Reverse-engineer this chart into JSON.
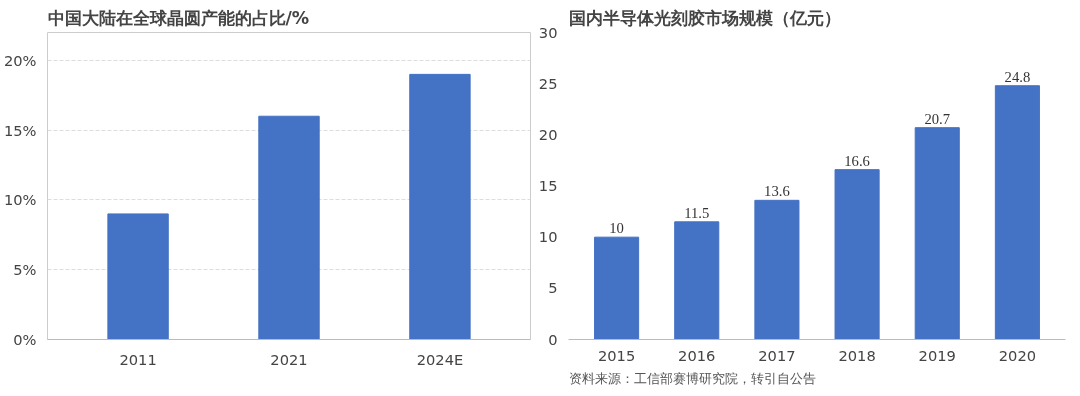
{
  "chart_data": [
    {
      "type": "bar",
      "title": "中国大陆在全球晶圆产能的占比/%",
      "categories": [
        "2011",
        "2021",
        "2024E"
      ],
      "values": [
        9,
        16,
        19
      ],
      "color": "#4472c4",
      "ylim": [
        0,
        22
      ],
      "yticks": [
        {
          "value": 0,
          "label": "0%"
        },
        {
          "value": 5,
          "label": "5%"
        },
        {
          "value": 10,
          "label": "10%"
        },
        {
          "value": 15,
          "label": "15%"
        },
        {
          "value": 20,
          "label": "20%"
        }
      ],
      "grid": "y"
    },
    {
      "type": "bar",
      "title": "国内半导体光刻胶市场规模（亿元）",
      "categories": [
        "2015",
        "2016",
        "2017",
        "2018",
        "2019",
        "2020"
      ],
      "values": [
        10,
        11.5,
        13.6,
        16.6,
        20.7,
        24.8
      ],
      "color": "#4472c4",
      "ylim": [
        0,
        30
      ],
      "yticks": [
        0,
        5,
        10,
        15,
        20,
        25,
        30
      ],
      "data_labels": true,
      "annotations": [
        "资料来源：工信部赛博研究院，转引自公告"
      ]
    }
  ]
}
